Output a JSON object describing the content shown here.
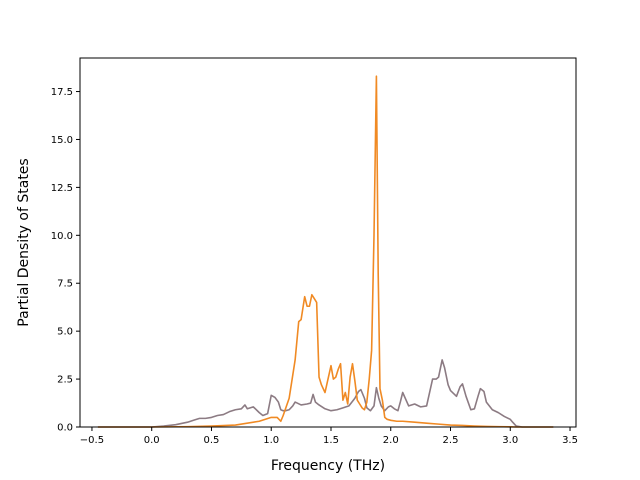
{
  "chart_data": {
    "type": "line",
    "title": "",
    "xlabel": "Frequency (THz)",
    "ylabel": "Partial Density of States",
    "xlim": [
      -0.6,
      3.55
    ],
    "ylim": [
      0,
      19.25
    ],
    "xticks": [
      -0.5,
      0.0,
      0.5,
      1.0,
      1.5,
      2.0,
      2.5,
      3.0,
      3.5
    ],
    "xtick_labels": [
      "−0.5",
      "0.0",
      "0.5",
      "1.0",
      "1.5",
      "2.0",
      "2.5",
      "3.0",
      "3.5"
    ],
    "yticks": [
      0.0,
      2.5,
      5.0,
      7.5,
      10.0,
      12.5,
      15.0,
      17.5
    ],
    "ytick_labels": [
      "0.0",
      "2.5",
      "5.0",
      "7.5",
      "10.0",
      "12.5",
      "15.0",
      "17.5"
    ],
    "grid": false,
    "legend": "none",
    "series": [
      {
        "color": "#8c7b83",
        "x": [
          -0.45,
          0.0,
          0.1,
          0.2,
          0.3,
          0.35,
          0.4,
          0.45,
          0.5,
          0.55,
          0.6,
          0.65,
          0.7,
          0.75,
          0.78,
          0.8,
          0.85,
          0.9,
          0.93,
          0.97,
          1.0,
          1.03,
          1.06,
          1.08,
          1.1,
          1.12,
          1.15,
          1.18,
          1.2,
          1.25,
          1.3,
          1.33,
          1.35,
          1.37,
          1.4,
          1.45,
          1.5,
          1.55,
          1.6,
          1.65,
          1.7,
          1.73,
          1.75,
          1.78,
          1.8,
          1.83,
          1.86,
          1.88,
          1.9,
          1.92,
          1.95,
          1.98,
          2.0,
          2.03,
          2.06,
          2.08,
          2.1,
          2.15,
          2.2,
          2.25,
          2.3,
          2.35,
          2.38,
          2.4,
          2.43,
          2.45,
          2.48,
          2.5,
          2.55,
          2.58,
          2.6,
          2.63,
          2.67,
          2.7,
          2.73,
          2.75,
          2.78,
          2.8,
          2.85,
          2.9,
          2.95,
          3.0,
          3.02,
          3.05,
          3.1,
          3.36
        ],
        "values": [
          0.0,
          0.0,
          0.05,
          0.12,
          0.25,
          0.35,
          0.45,
          0.45,
          0.5,
          0.6,
          0.65,
          0.8,
          0.9,
          0.95,
          1.15,
          0.95,
          1.05,
          0.75,
          0.6,
          0.7,
          1.65,
          1.55,
          1.3,
          0.9,
          0.85,
          0.85,
          0.9,
          1.1,
          1.3,
          1.15,
          1.2,
          1.25,
          1.7,
          1.3,
          1.15,
          0.95,
          0.85,
          0.9,
          1.0,
          1.1,
          1.5,
          1.85,
          1.95,
          1.5,
          1.0,
          0.85,
          1.1,
          2.05,
          1.5,
          1.1,
          0.85,
          1.05,
          1.1,
          0.95,
          0.85,
          1.3,
          1.8,
          1.1,
          1.2,
          1.05,
          1.1,
          2.5,
          2.5,
          2.6,
          3.5,
          3.1,
          2.2,
          1.9,
          1.6,
          2.1,
          2.25,
          1.6,
          0.9,
          0.95,
          1.6,
          2.0,
          1.85,
          1.3,
          0.9,
          0.75,
          0.55,
          0.4,
          0.25,
          0.05,
          0.0,
          0.0
        ]
      },
      {
        "color": "#f08a24",
        "x": [
          -0.45,
          0.0,
          0.3,
          0.5,
          0.7,
          0.9,
          1.0,
          1.05,
          1.08,
          1.1,
          1.15,
          1.2,
          1.23,
          1.25,
          1.28,
          1.3,
          1.32,
          1.34,
          1.36,
          1.38,
          1.4,
          1.42,
          1.45,
          1.5,
          1.52,
          1.54,
          1.56,
          1.58,
          1.6,
          1.62,
          1.64,
          1.66,
          1.68,
          1.7,
          1.72,
          1.74,
          1.76,
          1.78,
          1.8,
          1.82,
          1.84,
          1.86,
          1.88,
          1.895,
          1.91,
          1.93,
          1.95,
          1.97,
          2.0,
          2.05,
          2.1,
          2.2,
          2.3,
          2.4,
          2.5,
          2.6,
          2.7,
          2.8,
          2.9,
          3.0,
          3.05,
          3.36
        ],
        "values": [
          0.0,
          0.0,
          0.02,
          0.05,
          0.1,
          0.3,
          0.5,
          0.5,
          0.3,
          0.6,
          1.5,
          3.5,
          5.5,
          5.6,
          6.8,
          6.3,
          6.3,
          6.9,
          6.7,
          6.5,
          2.6,
          2.2,
          1.8,
          3.2,
          2.5,
          2.6,
          3.0,
          3.3,
          1.4,
          1.8,
          1.2,
          2.6,
          3.3,
          2.4,
          1.4,
          1.2,
          1.0,
          0.9,
          1.3,
          2.5,
          4.0,
          10.0,
          18.3,
          8.0,
          2.0,
          1.4,
          0.5,
          0.4,
          0.35,
          0.3,
          0.3,
          0.25,
          0.2,
          0.15,
          0.1,
          0.08,
          0.05,
          0.03,
          0.02,
          0.01,
          0.0,
          0.0
        ]
      }
    ]
  }
}
